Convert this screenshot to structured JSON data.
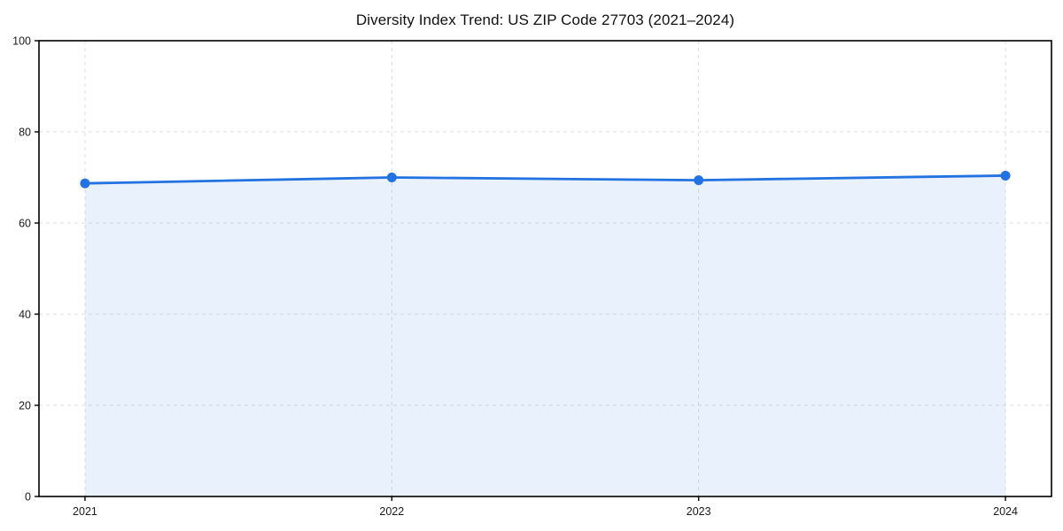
{
  "title": "Diversity Index Trend: US ZIP Code 27703 (2021–2024)",
  "chart_data": {
    "type": "area",
    "title": "Diversity Index Trend: US ZIP Code 27703 (2021–2024)",
    "x": [
      2021,
      2022,
      2023,
      2024
    ],
    "series": [
      {
        "name": "Diversity Index",
        "values": [
          68.7,
          70.0,
          69.4,
          70.4
        ]
      }
    ],
    "xlabel": "",
    "ylabel": "",
    "xlim": [
      2020.85,
      2024.15
    ],
    "ylim": [
      0,
      100
    ],
    "xticks": [
      2021,
      2022,
      2023,
      2024
    ],
    "yticks": [
      0,
      20,
      40,
      60,
      80,
      100
    ],
    "grid": true,
    "grid_style": "dashed",
    "legend": "none",
    "colors": {
      "line": "#2372e2",
      "marker": "#2372e2",
      "fill": "#2372e2",
      "fill_opacity": 0.1,
      "grid": "#dddddd",
      "spine": "#000000",
      "tick_text": "#1a1a1a",
      "background": "#ffffff"
    }
  }
}
